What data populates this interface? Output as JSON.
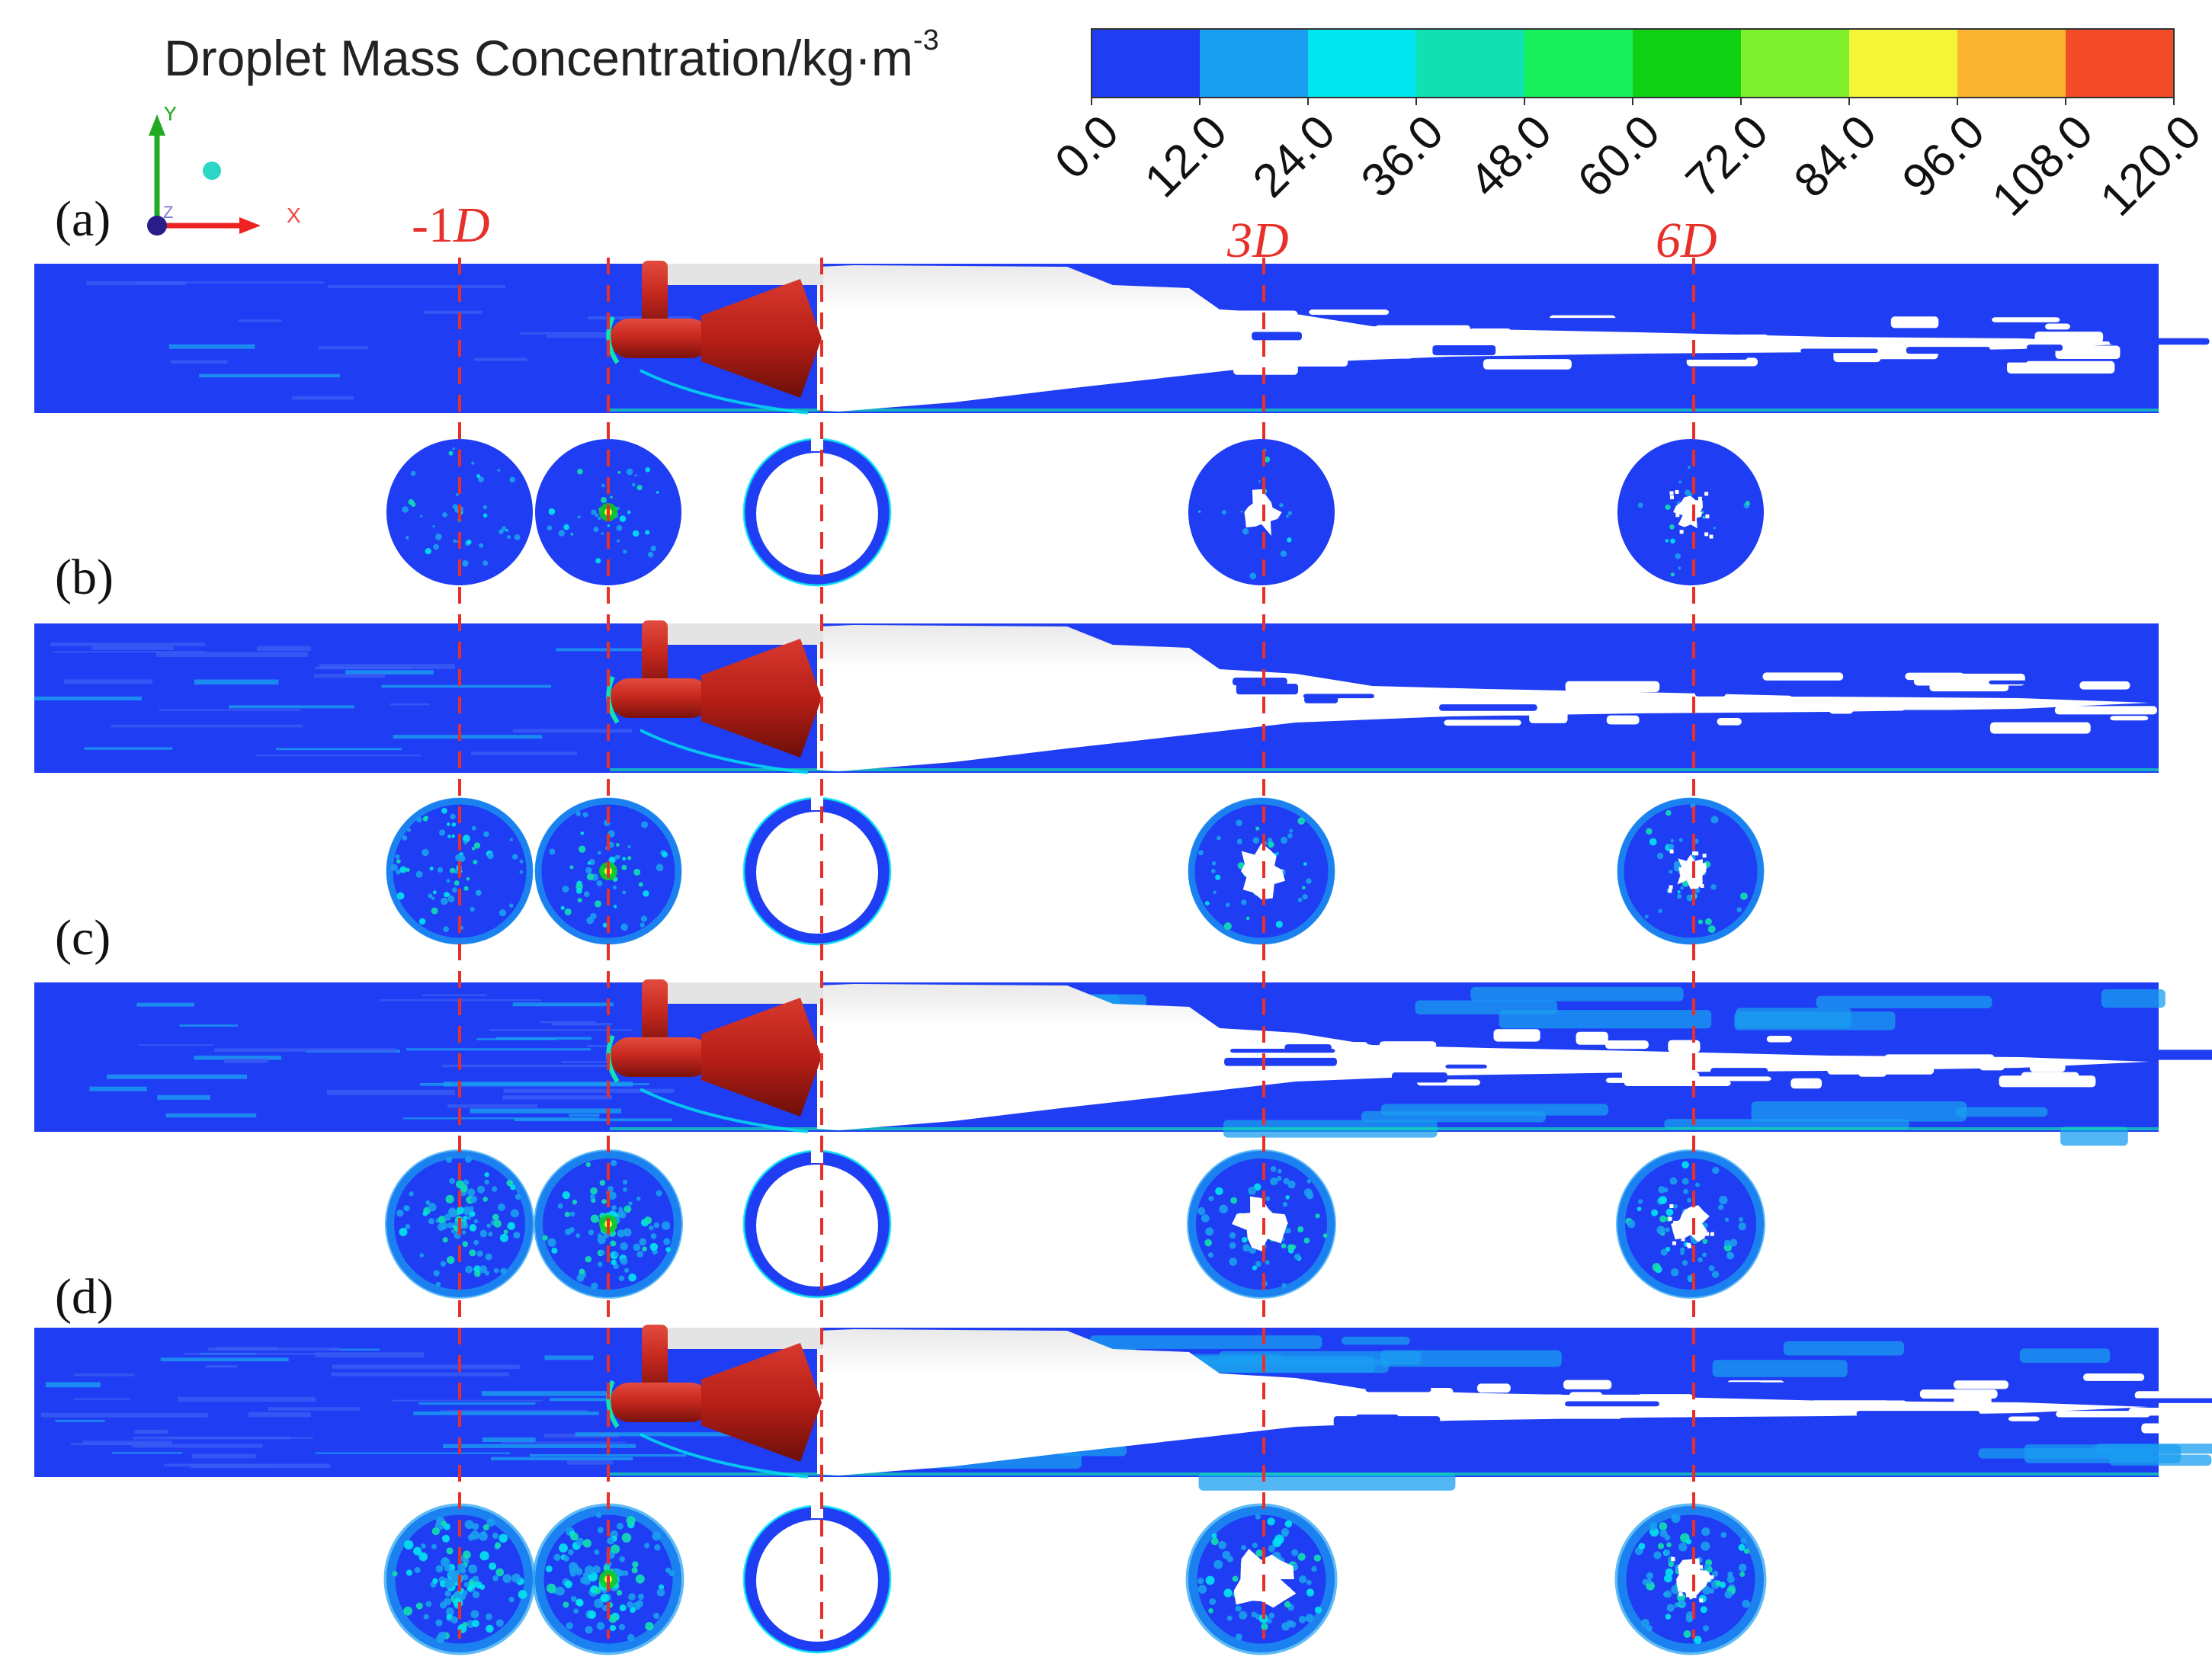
{
  "legend": {
    "title": "Droplet Mass Concentration/kg·m",
    "title_exponent": "-3",
    "ticks": [
      "0.0",
      "12.0",
      "24.0",
      "36.0",
      "48.0",
      "60.0",
      "72.0",
      "84.0",
      "96.0",
      "108.0",
      "120.0"
    ],
    "colors": [
      "#1f3df2",
      "#1a9ef0",
      "#00e6f0",
      "#11e0b0",
      "#17ef5c",
      "#0fd012",
      "#7ef02e",
      "#f4f536",
      "#fbb431",
      "#f34a27"
    ]
  },
  "axes": {
    "x": "X",
    "y": "Y",
    "z": "Z"
  },
  "panels": [
    {
      "label": "(a)"
    },
    {
      "label": "(b)"
    },
    {
      "label": "(c)"
    },
    {
      "label": "(d)"
    }
  ],
  "positions": {
    "minus1": {
      "prefix": "-1",
      "unit": "D"
    },
    "plus3": {
      "prefix": "3",
      "unit": "D"
    },
    "plus6": {
      "prefix": "6",
      "unit": "D"
    }
  },
  "colors": {
    "guide": "#e8302a",
    "body": "#c8281f",
    "field": "#1f3df2",
    "void": "#ffffff"
  }
}
